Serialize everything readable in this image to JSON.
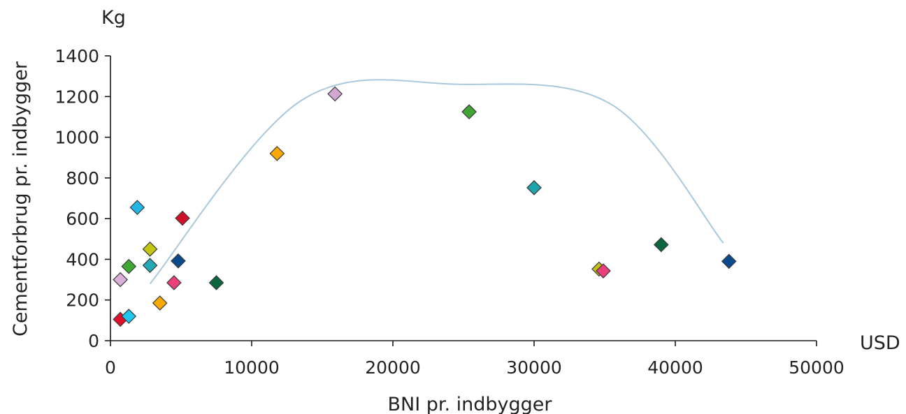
{
  "chart_data": {
    "type": "scatter",
    "xlabel": "BNI pr. indbygger",
    "ylabel": "Cementforbrug pr. indbygger",
    "x_unit": "USD",
    "y_unit": "Kg",
    "xlim": [
      0,
      50000
    ],
    "ylim": [
      0,
      1400
    ],
    "x_ticks": [
      "0",
      "10000",
      "20000",
      "30000",
      "40000",
      "50000"
    ],
    "y_ticks": [
      "0",
      "200",
      "400",
      "600",
      "800",
      "1000",
      "1200",
      "1400"
    ],
    "grid": false,
    "legend": "none",
    "points": [
      {
        "x": 700,
        "y": 105,
        "color": "#e0112b"
      },
      {
        "x": 1300,
        "y": 120,
        "color": "#22c5ee"
      },
      {
        "x": 700,
        "y": 300,
        "color": "#d9aed8"
      },
      {
        "x": 1300,
        "y": 365,
        "color": "#3da833"
      },
      {
        "x": 1900,
        "y": 655,
        "color": "#23b6e3"
      },
      {
        "x": 2800,
        "y": 450,
        "color": "#c5c514"
      },
      {
        "x": 2800,
        "y": 370,
        "color": "#24aab4"
      },
      {
        "x": 3500,
        "y": 185,
        "color": "#f8aa00"
      },
      {
        "x": 4500,
        "y": 285,
        "color": "#e9407b"
      },
      {
        "x": 4800,
        "y": 392,
        "color": "#0b4a8c"
      },
      {
        "x": 5100,
        "y": 602,
        "color": "#d0102a"
      },
      {
        "x": 7500,
        "y": 285,
        "color": "#0b6640"
      },
      {
        "x": 11800,
        "y": 920,
        "color": "#f8a800"
      },
      {
        "x": 15900,
        "y": 1213,
        "color": "#d1a6d3"
      },
      {
        "x": 25400,
        "y": 1125,
        "color": "#41a535"
      },
      {
        "x": 30000,
        "y": 752,
        "color": "#1fa3ad"
      },
      {
        "x": 34600,
        "y": 352,
        "color": "#c0c014"
      },
      {
        "x": 34900,
        "y": 343,
        "color": "#e9407b"
      },
      {
        "x": 39000,
        "y": 472,
        "color": "#0b6640"
      },
      {
        "x": 43800,
        "y": 390,
        "color": "#0b4a8c"
      }
    ],
    "trend_curve": [
      {
        "x": 2800,
        "y": 280
      },
      {
        "x": 13500,
        "y": 1180
      },
      {
        "x": 24700,
        "y": 1260
      },
      {
        "x": 35500,
        "y": 1160
      },
      {
        "x": 43400,
        "y": 480
      }
    ],
    "trend_color": "#a8c8dc"
  }
}
